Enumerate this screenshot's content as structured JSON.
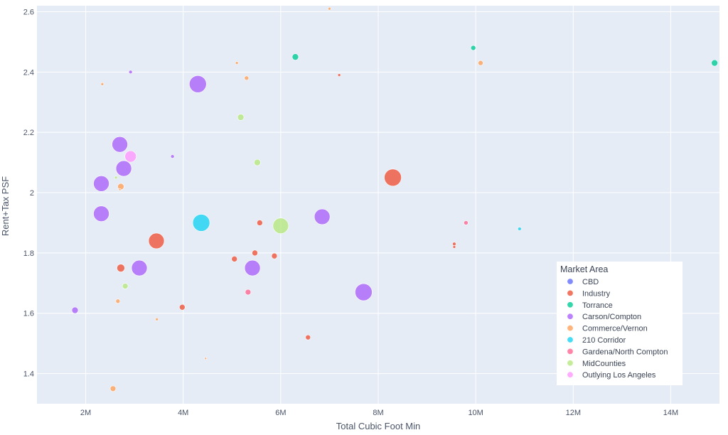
{
  "chart_data": {
    "type": "scatter",
    "xlabel": "Total Cubic Foot Min",
    "ylabel": "Rent+Tax PSF",
    "xlim": [
      1000000,
      15000000
    ],
    "ylim": [
      1.3,
      2.62
    ],
    "x_ticks": [
      {
        "value": 2000000,
        "label": "2M"
      },
      {
        "value": 4000000,
        "label": "4M"
      },
      {
        "value": 6000000,
        "label": "6M"
      },
      {
        "value": 8000000,
        "label": "8M"
      },
      {
        "value": 10000000,
        "label": "10M"
      },
      {
        "value": 12000000,
        "label": "12M"
      },
      {
        "value": 14000000,
        "label": "14M"
      }
    ],
    "y_ticks": [
      {
        "value": 1.4,
        "label": "1.4"
      },
      {
        "value": 1.6,
        "label": "1.6"
      },
      {
        "value": 1.8,
        "label": "1.8"
      },
      {
        "value": 2.0,
        "label": "2"
      },
      {
        "value": 2.2,
        "label": "2.2"
      },
      {
        "value": 2.4,
        "label": "2.4"
      },
      {
        "value": 2.6,
        "label": "2.6"
      }
    ],
    "grid": true,
    "legend_title": "Market Area",
    "legend_position": "bottom-right",
    "series": [
      {
        "name": "CBD",
        "color": "#636efa",
        "points": []
      },
      {
        "name": "Industry",
        "color": "#ef553b",
        "points": [
          {
            "x": 8300000,
            "y": 2.05,
            "size": 24
          },
          {
            "x": 3450000,
            "y": 1.84,
            "size": 22
          },
          {
            "x": 2720000,
            "y": 1.75,
            "size": 11
          },
          {
            "x": 3980000,
            "y": 1.62,
            "size": 8
          },
          {
            "x": 5570000,
            "y": 1.9,
            "size": 8
          },
          {
            "x": 5470000,
            "y": 1.8,
            "size": 8
          },
          {
            "x": 5870000,
            "y": 1.79,
            "size": 8
          },
          {
            "x": 5050000,
            "y": 1.78,
            "size": 8
          },
          {
            "x": 6560000,
            "y": 1.52,
            "size": 7
          },
          {
            "x": 9560000,
            "y": 1.83,
            "size": 5
          },
          {
            "x": 9560000,
            "y": 1.82,
            "size": 4
          },
          {
            "x": 7200000,
            "y": 2.39,
            "size": 4
          }
        ]
      },
      {
        "name": "Torrance",
        "color": "#00cc96",
        "points": [
          {
            "x": 14900000,
            "y": 2.43,
            "size": 9
          },
          {
            "x": 6300000,
            "y": 2.45,
            "size": 9
          },
          {
            "x": 9950000,
            "y": 2.48,
            "size": 7
          }
        ]
      },
      {
        "name": "Carson/Compton",
        "color": "#ab63fa",
        "points": [
          {
            "x": 4300000,
            "y": 2.36,
            "size": 24
          },
          {
            "x": 2700000,
            "y": 2.16,
            "size": 22
          },
          {
            "x": 2780000,
            "y": 2.08,
            "size": 22
          },
          {
            "x": 2320000,
            "y": 2.03,
            "size": 22
          },
          {
            "x": 2320000,
            "y": 1.93,
            "size": 22
          },
          {
            "x": 3100000,
            "y": 1.75,
            "size": 22
          },
          {
            "x": 5420000,
            "y": 1.75,
            "size": 22
          },
          {
            "x": 6850000,
            "y": 1.92,
            "size": 22
          },
          {
            "x": 7700000,
            "y": 1.67,
            "size": 24
          },
          {
            "x": 1780000,
            "y": 1.61,
            "size": 9
          },
          {
            "x": 2920000,
            "y": 2.4,
            "size": 5
          },
          {
            "x": 3780000,
            "y": 2.12,
            "size": 5
          }
        ]
      },
      {
        "name": "Commerce/Vernon",
        "color": "#ffa15a",
        "points": [
          {
            "x": 2720000,
            "y": 2.02,
            "size": 9
          },
          {
            "x": 2560000,
            "y": 1.35,
            "size": 8
          },
          {
            "x": 10100000,
            "y": 2.43,
            "size": 7
          },
          {
            "x": 5300000,
            "y": 2.38,
            "size": 6
          },
          {
            "x": 2660000,
            "y": 1.64,
            "size": 6
          },
          {
            "x": 2340000,
            "y": 2.36,
            "size": 4
          },
          {
            "x": 5100000,
            "y": 2.43,
            "size": 4
          },
          {
            "x": 7000000,
            "y": 2.61,
            "size": 4
          },
          {
            "x": 3460000,
            "y": 1.58,
            "size": 4
          },
          {
            "x": 4460000,
            "y": 1.45,
            "size": 3
          },
          {
            "x": 2700000,
            "y": 2.01,
            "size": 3
          }
        ]
      },
      {
        "name": "210 Corridor",
        "color": "#19d3f3",
        "points": [
          {
            "x": 4370000,
            "y": 1.9,
            "size": 24
          },
          {
            "x": 10900000,
            "y": 1.88,
            "size": 5
          }
        ]
      },
      {
        "name": "Gardena/North Compton",
        "color": "#ff6692",
        "points": [
          {
            "x": 5330000,
            "y": 1.67,
            "size": 8
          },
          {
            "x": 9800000,
            "y": 1.9,
            "size": 6
          }
        ]
      },
      {
        "name": "MidCounties",
        "color": "#b6e880",
        "points": [
          {
            "x": 6000000,
            "y": 1.89,
            "size": 22
          },
          {
            "x": 5180000,
            "y": 2.25,
            "size": 9
          },
          {
            "x": 5520000,
            "y": 2.1,
            "size": 9
          },
          {
            "x": 2810000,
            "y": 1.69,
            "size": 8
          },
          {
            "x": 2620000,
            "y": 2.05,
            "size": 4
          }
        ]
      },
      {
        "name": "Outlying Los Angeles",
        "color": "#ff97ff",
        "points": [
          {
            "x": 2920000,
            "y": 2.12,
            "size": 16
          }
        ]
      }
    ]
  }
}
